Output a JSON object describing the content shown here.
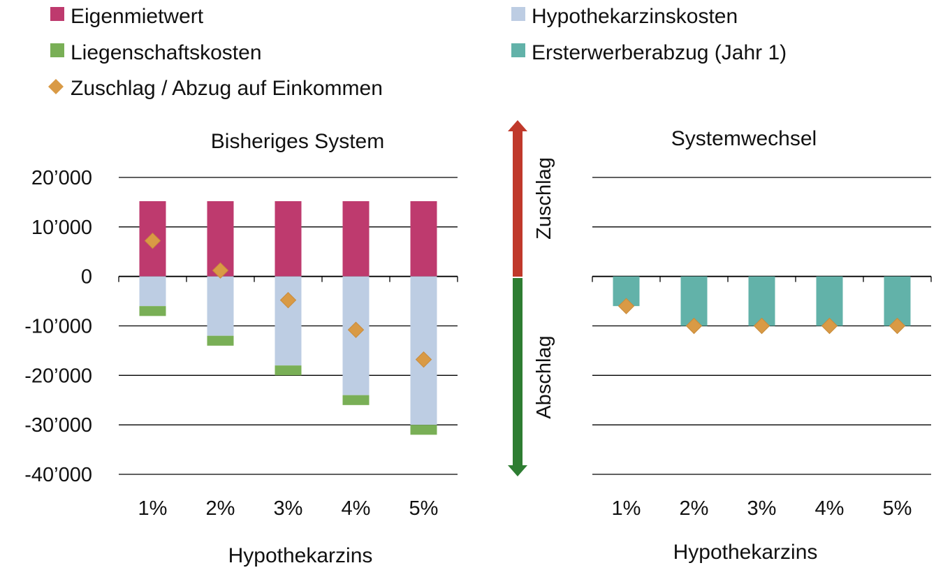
{
  "legend": [
    {
      "key": "eigenmietwert",
      "label": "Eigenmietwert",
      "color": "#BE3A6E",
      "marker": "square"
    },
    {
      "key": "hypothekarzinskosten",
      "label": "Hypothekarzinskosten",
      "color": "#BDCDE3",
      "marker": "square"
    },
    {
      "key": "liegenschaftskosten",
      "label": "Liegenschaftskosten",
      "color": "#79AF56",
      "marker": "square"
    },
    {
      "key": "ersterwerberabzug",
      "label": "Ersterwerberabzug (Jahr 1)",
      "color": "#62B2A9",
      "marker": "square"
    },
    {
      "key": "zuschlag_abzug",
      "label": "Zuschlag / Abzug auf Einkommen",
      "color": "#D99A45",
      "marker": "diamond"
    }
  ],
  "arrow": {
    "up_label": "Zuschlag",
    "down_label": "Abschlag",
    "up_color": "#C0392B",
    "down_color": "#2E7D32"
  },
  "chart_data": [
    {
      "type": "bar",
      "stacked": true,
      "title": "Bisheriges System",
      "xlabel": "Hypothekarzins",
      "ylabel": "",
      "categories": [
        "1%",
        "2%",
        "3%",
        "4%",
        "5%"
      ],
      "ylim": [
        -40000,
        20000
      ],
      "yticks": [
        20000,
        10000,
        0,
        -10000,
        -20000,
        -30000,
        -40000
      ],
      "ytick_labels": [
        "20’000",
        "10’000",
        "0",
        "-10’000",
        "-20’000",
        "-30’000",
        "-40’000"
      ],
      "grid": true,
      "series": [
        {
          "name": "Eigenmietwert",
          "key": "eigenmietwert",
          "values": [
            15200,
            15200,
            15200,
            15200,
            15200
          ]
        },
        {
          "name": "Hypothekarzinskosten",
          "key": "hypothekarzinskosten",
          "values": [
            -6000,
            -12000,
            -18000,
            -24000,
            -30000
          ]
        },
        {
          "name": "Liegenschaftskosten",
          "key": "liegenschaftskosten",
          "values": [
            -2000,
            -2000,
            -2000,
            -2000,
            -2000
          ]
        }
      ],
      "markers": {
        "name": "Zuschlag / Abzug auf Einkommen",
        "key": "zuschlag_abzug",
        "values": [
          7200,
          1200,
          -4800,
          -10800,
          -16800
        ]
      }
    },
    {
      "type": "bar",
      "stacked": true,
      "title": "Systemwechsel",
      "xlabel": "Hypothekarzins",
      "ylabel": "",
      "categories": [
        "1%",
        "2%",
        "3%",
        "4%",
        "5%"
      ],
      "ylim": [
        -40000,
        20000
      ],
      "grid": true,
      "series": [
        {
          "name": "Ersterwerberabzug (Jahr 1)",
          "key": "ersterwerberabzug",
          "values": [
            -6000,
            -10000,
            -10000,
            -10000,
            -10000
          ]
        }
      ],
      "markers": {
        "name": "Zuschlag / Abzug auf Einkommen",
        "key": "zuschlag_abzug",
        "values": [
          -6000,
          -10000,
          -10000,
          -10000,
          -10000
        ]
      }
    }
  ]
}
